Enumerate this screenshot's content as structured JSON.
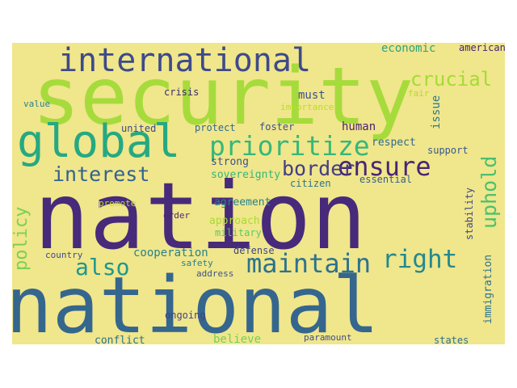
{
  "canvas": {
    "background": "#f0e68c"
  },
  "words": [
    {
      "text": "security",
      "color": "#a6db3c"
    },
    {
      "text": "nation",
      "color": "#472a7a"
    },
    {
      "text": "national",
      "color": "#35668d"
    },
    {
      "text": "international",
      "color": "#3e4a89"
    },
    {
      "text": "global",
      "color": "#25a982"
    },
    {
      "text": "prioritize",
      "color": "#36b779"
    },
    {
      "text": "crucial",
      "color": "#a5db36"
    },
    {
      "text": "ensure",
      "color": "#482475"
    },
    {
      "text": "border",
      "color": "#433e85"
    },
    {
      "text": "uphold",
      "color": "#4ac16d"
    },
    {
      "text": "interest",
      "color": "#33638d"
    },
    {
      "text": "maintain",
      "color": "#2c728e"
    },
    {
      "text": "right",
      "color": "#23898e"
    },
    {
      "text": "also",
      "color": "#1f978b"
    },
    {
      "text": "policy",
      "color": "#7ad151"
    },
    {
      "text": "economic",
      "color": "#2ea37f"
    },
    {
      "text": "american",
      "color": "#482173"
    },
    {
      "text": "must",
      "color": "#3b528b"
    },
    {
      "text": "crisis",
      "color": "#3b2a6e"
    },
    {
      "text": "value",
      "color": "#26828e"
    },
    {
      "text": "importance",
      "color": "#b8de29"
    },
    {
      "text": "fair",
      "color": "#b3dc2b"
    },
    {
      "text": "issue",
      "color": "#2a788e"
    },
    {
      "text": "united",
      "color": "#3e4989"
    },
    {
      "text": "protect",
      "color": "#2f6c8e"
    },
    {
      "text": "foster",
      "color": "#3b528b"
    },
    {
      "text": "human",
      "color": "#481f70"
    },
    {
      "text": "respect",
      "color": "#306a8e"
    },
    {
      "text": "support",
      "color": "#38598c"
    },
    {
      "text": "strong",
      "color": "#39558c"
    },
    {
      "text": "sovereignty",
      "color": "#34b679"
    },
    {
      "text": "citizen",
      "color": "#2c728e"
    },
    {
      "text": "essential",
      "color": "#355f8d"
    },
    {
      "text": "agreement",
      "color": "#27808e"
    },
    {
      "text": "promote",
      "color": "#bddf26"
    },
    {
      "text": "order",
      "color": "#482878"
    },
    {
      "text": "approach",
      "color": "#a8db34"
    },
    {
      "text": "military",
      "color": "#5ec962"
    },
    {
      "text": "stability",
      "color": "#3f4889"
    },
    {
      "text": "country",
      "color": "#3e4a89"
    },
    {
      "text": "cooperation",
      "color": "#26828e"
    },
    {
      "text": "safety",
      "color": "#277f8e"
    },
    {
      "text": "defense",
      "color": "#3f4788"
    },
    {
      "text": "address",
      "color": "#3b528b"
    },
    {
      "text": "immigration",
      "color": "#2c738e"
    },
    {
      "text": "ongoing",
      "color": "#424086"
    },
    {
      "text": "believe",
      "color": "#75d054"
    },
    {
      "text": "paramount",
      "color": "#3d4d8a"
    },
    {
      "text": "conflict",
      "color": "#2c728e"
    },
    {
      "text": "states",
      "color": "#2d708e"
    }
  ]
}
